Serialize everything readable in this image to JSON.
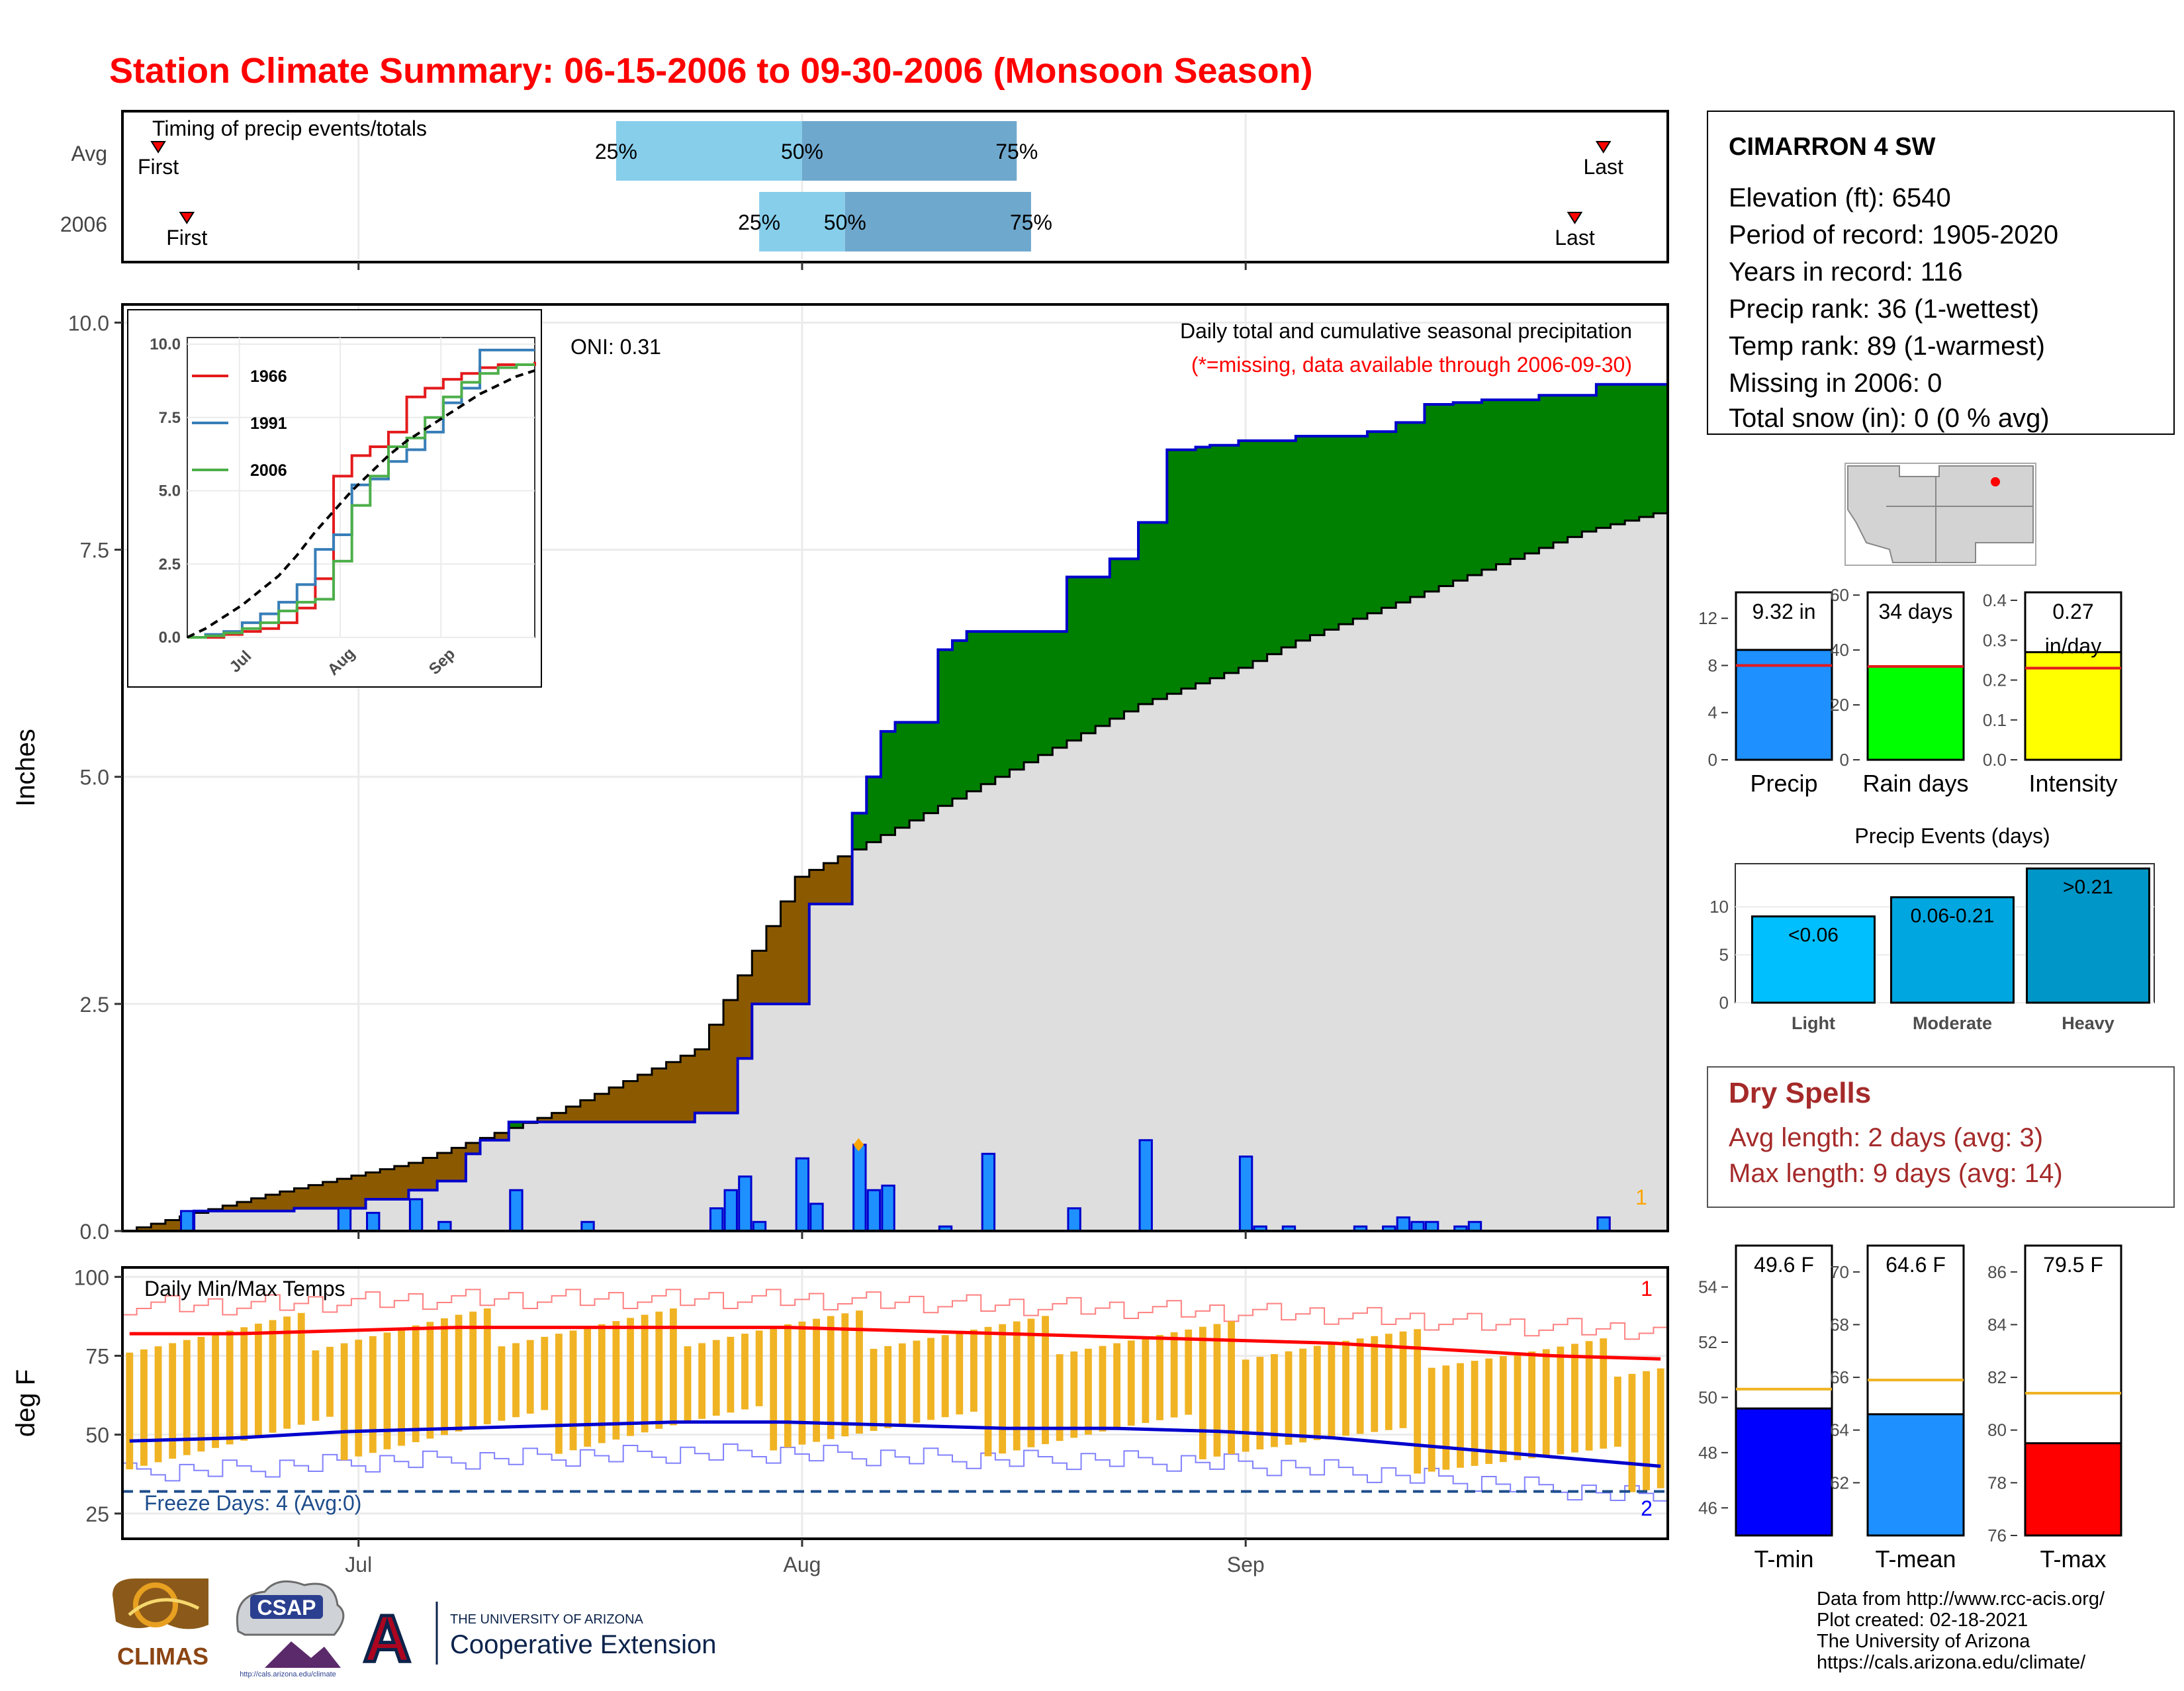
{
  "title": "Station Climate Summary: 06-15-2006 to 09-30-2006 (Monsoon Season)",
  "timing": {
    "label": "Timing of precip events/totals",
    "rows": [
      {
        "name": "Avg",
        "first": "06-17",
        "p25": "07-19",
        "p50": "08-01",
        "p75": "08-16",
        "last": "09-26"
      },
      {
        "name": "2006",
        "first": "06-19",
        "p25": "07-29",
        "p50": "08-04",
        "p75": "08-17",
        "last": "09-24"
      }
    ],
    "first_label": "First",
    "last_label": "Last",
    "p25_label": "25%",
    "p50_label": "50%",
    "p75_label": "75%"
  },
  "station": {
    "name": "CIMARRON 4 SW",
    "lines": [
      "Elevation (ft): 6540",
      "Period of record: 1905-2020",
      "Years in record: 116",
      "Precip rank: 36 (1-wettest)",
      "Temp rank: 89 (1-warmest)",
      "Missing in 2006: 0",
      "Total snow (in): 0 (0 % avg)"
    ]
  },
  "main_chart": {
    "ylabel": "Inches",
    "annotation_title": "Daily total and cumulative seasonal precipitation",
    "annotation_missing": "(*=missing, data available through 2006-09-30)",
    "oni": "ONI: 0.31",
    "corner_count": "1",
    "x_labels": [
      "Jul",
      "Aug",
      "Sep"
    ],
    "y_ticks": [
      "0.0",
      "2.5",
      "5.0",
      "7.5",
      "10.0"
    ]
  },
  "chart_data": [
    {
      "type": "area",
      "name": "main-precip",
      "x_start": "2006-06-15",
      "x_end": "2006-09-30",
      "ylim": [
        0,
        10.2
      ],
      "series": [
        {
          "name": "avg-cumulative",
          "x": [
            "06-15",
            "06-25",
            "07-05",
            "07-15",
            "07-25",
            "08-01",
            "08-05",
            "08-10",
            "08-15",
            "08-20",
            "08-25",
            "09-01",
            "09-05",
            "09-10",
            "09-15",
            "09-20",
            "09-25",
            "09-30"
          ],
          "values": [
            0.0,
            0.4,
            0.75,
            1.3,
            2.0,
            3.9,
            4.2,
            4.6,
            5.0,
            5.4,
            5.8,
            6.2,
            6.5,
            6.8,
            7.1,
            7.4,
            7.7,
            7.9
          ]
        },
        {
          "name": "2006-cumulative",
          "x": [
            "06-15",
            "06-20",
            "06-27",
            "07-02",
            "07-05",
            "07-07",
            "07-09",
            "07-10",
            "07-12",
            "07-25",
            "07-28",
            "07-29",
            "08-02",
            "08-05",
            "08-06",
            "08-07",
            "08-08",
            "08-11",
            "08-12",
            "08-13",
            "08-20",
            "08-23",
            "08-25",
            "08-27",
            "08-29",
            "08-30",
            "09-01",
            "09-05",
            "09-10",
            "09-12",
            "09-14",
            "09-16",
            "09-18",
            "09-22",
            "09-26",
            "09-30"
          ],
          "values": [
            0.0,
            0.22,
            0.25,
            0.35,
            0.45,
            0.55,
            0.85,
            1.0,
            1.2,
            1.3,
            1.9,
            2.5,
            3.6,
            4.6,
            5.0,
            5.5,
            5.6,
            6.4,
            6.5,
            6.6,
            7.2,
            7.4,
            7.8,
            8.6,
            8.63,
            8.65,
            8.7,
            8.75,
            8.8,
            8.9,
            9.1,
            9.12,
            9.15,
            9.2,
            9.32,
            9.32
          ]
        },
        {
          "name": "daily-precip",
          "x": [
            "06-19",
            "06-30",
            "07-02",
            "07-05",
            "07-07",
            "07-12",
            "07-17",
            "07-26",
            "07-27",
            "07-28",
            "07-29",
            "08-01",
            "08-02",
            "08-05",
            "08-06",
            "08-07",
            "08-11",
            "08-14",
            "08-20",
            "08-25",
            "09-01",
            "09-02",
            "09-04",
            "09-09",
            "09-11",
            "09-12",
            "09-13",
            "09-14",
            "09-16",
            "09-17",
            "09-26"
          ],
          "values": [
            0.22,
            0.25,
            0.2,
            0.35,
            0.1,
            0.45,
            0.1,
            0.25,
            0.45,
            0.6,
            0.1,
            0.8,
            0.3,
            0.95,
            0.45,
            0.5,
            0.05,
            0.85,
            0.25,
            1.0,
            0.82,
            0.05,
            0.05,
            0.05,
            0.05,
            0.15,
            0.1,
            0.1,
            0.05,
            0.1,
            0.15
          ]
        }
      ]
    },
    {
      "type": "line",
      "name": "inset-cumulative",
      "ylim": [
        0,
        10.0
      ],
      "x_labels": [
        "Jul",
        "Aug",
        "Sep"
      ],
      "y_ticks": [
        "0.0",
        "2.5",
        "5.0",
        "7.5",
        "10.0"
      ],
      "series": [
        {
          "name": "1966",
          "values": [
            0,
            0,
            0.1,
            0.2,
            0.3,
            0.5,
            1.0,
            2.0,
            5.5,
            6.2,
            6.5,
            7.0,
            8.2,
            8.5,
            8.8,
            9.0,
            9.2,
            9.3,
            9.3,
            9.4
          ]
        },
        {
          "name": "1991",
          "values": [
            0,
            0.1,
            0.2,
            0.5,
            0.8,
            1.2,
            1.8,
            3.0,
            3.5,
            5.2,
            5.4,
            6.0,
            6.4,
            7.0,
            8.0,
            8.5,
            9.8,
            9.8,
            9.8,
            9.8
          ]
        },
        {
          "name": "2006",
          "values": [
            0,
            0.05,
            0.15,
            0.3,
            0.5,
            0.9,
            1.2,
            1.3,
            2.6,
            4.5,
            5.5,
            6.5,
            6.8,
            7.5,
            8.2,
            8.7,
            9.0,
            9.2,
            9.3,
            9.3
          ]
        },
        {
          "name": "avg",
          "values": [
            0,
            0.3,
            0.7,
            1.1,
            1.6,
            2.1,
            2.8,
            3.6,
            4.3,
            5.0,
            5.6,
            6.2,
            6.7,
            7.1,
            7.5,
            7.9,
            8.3,
            8.6,
            8.9,
            9.1
          ]
        }
      ]
    },
    {
      "type": "bar",
      "name": "season-totals",
      "categories": [
        "Precip",
        "Rain days",
        "Intensity"
      ],
      "values": [
        9.32,
        34,
        0.27
      ],
      "value_labels": [
        "9.32 in",
        "34 days",
        "0.27 in/day"
      ],
      "averages": [
        8.0,
        34,
        0.23
      ],
      "ylims": [
        [
          0,
          14.2
        ],
        [
          0,
          61
        ],
        [
          0,
          0.42
        ]
      ],
      "tick_sets": [
        [
          "0",
          "4",
          "8",
          "12"
        ],
        [
          "0",
          "20",
          "40",
          "60"
        ],
        [
          "0.0",
          "0.1",
          "0.2",
          "0.3",
          "0.4"
        ]
      ],
      "colors": [
        "#1e90ff",
        "#00ff00",
        "#ffff00"
      ]
    },
    {
      "type": "bar",
      "name": "precip-events",
      "title": "Precip Events (days)",
      "categories": [
        "Light",
        "Moderate",
        "Heavy"
      ],
      "values": [
        9,
        11,
        14
      ],
      "value_labels": [
        "<0.06",
        "0.06-0.21",
        ">0.21"
      ],
      "ylim": [
        0,
        14.5
      ],
      "y_ticks": [
        "0",
        "5",
        "10"
      ],
      "colors": [
        "#00bfff",
        "#00a6e0",
        "#0096c7"
      ]
    },
    {
      "type": "bar",
      "name": "daily-temps",
      "ylabel": "deg F",
      "ylim": [
        17,
        103
      ],
      "y_ticks": [
        "25",
        "50",
        "75",
        "100"
      ],
      "x_labels": [
        "Jul",
        "Aug",
        "Sep"
      ],
      "panel_title": "Daily Min/Max Temps",
      "freeze": "Freeze Days: 4 (Avg:0)",
      "record_high_count": "1",
      "record_low_count": "2",
      "avg_max": [
        82,
        82,
        83,
        84,
        84,
        84,
        84,
        83,
        82,
        81,
        80,
        79,
        77,
        75,
        74
      ],
      "avg_min": [
        48,
        49,
        51,
        52,
        53,
        54,
        54,
        53,
        52,
        52,
        51,
        49,
        46,
        43,
        40
      ]
    },
    {
      "type": "bar",
      "name": "temp-summary",
      "categories": [
        "T-min",
        "T-mean",
        "T-max"
      ],
      "values": [
        49.6,
        64.6,
        79.5
      ],
      "value_labels": [
        "49.6 F",
        "64.6 F",
        "79.5 F"
      ],
      "averages": [
        50.3,
        65.9,
        81.4
      ],
      "ylims": [
        [
          45,
          55.5
        ],
        [
          60,
          71
        ],
        [
          76,
          87
        ]
      ],
      "tick_sets": [
        [
          "46",
          "48",
          "50",
          "52",
          "54"
        ],
        [
          "62",
          "64",
          "66",
          "68",
          "70"
        ],
        [
          "76",
          "78",
          "80",
          "82",
          "84",
          "86"
        ]
      ],
      "colors": [
        "#0000ff",
        "#1e90ff",
        "#ff0000"
      ]
    }
  ],
  "dry_spells": {
    "title": "Dry Spells",
    "avg": "Avg length: 2 days (avg: 3)",
    "max": "Max length: 9 days (avg: 14)"
  },
  "footer": {
    "lines": [
      "Data from http://www.rcc-acis.org/",
      "Plot created: 02-18-2021",
      "The University of Arizona",
      "https://cals.arizona.edu/climate/"
    ],
    "logos": {
      "climas": "CLIMAS",
      "csap": "CSAP",
      "csap_url": "http://cals.arizona.edu/climate",
      "ua_top": "THE UNIVERSITY OF ARIZONA",
      "ua_bottom": "Cooperative Extension",
      "ua_letter": "A"
    }
  },
  "colors": {
    "title": "#ff0000",
    "deficit": "#8b5a00",
    "surplus": "#008000",
    "avg_area": "#dedede",
    "obs_line": "#0000cd",
    "bar": "#1e90ff",
    "temp_bar": "#f0b323",
    "dry_spell": "#a52a2a"
  }
}
